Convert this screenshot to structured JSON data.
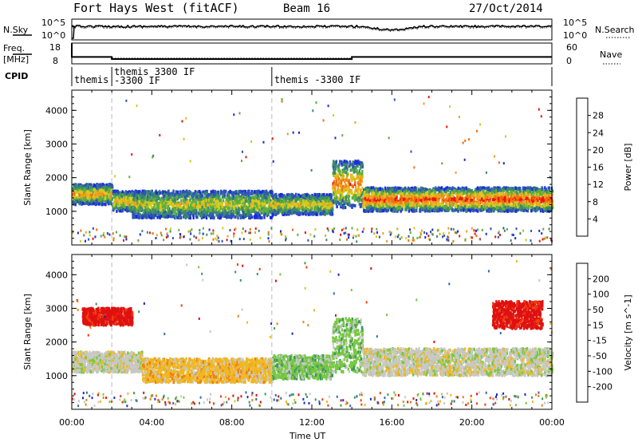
{
  "header": {
    "station": "Fort Hays West (fitACF)",
    "beam": "Beam 16",
    "date": "27/Oct/2014"
  },
  "strip_labels": {
    "nsky": "N.Sky",
    "nsearch": "N.Search",
    "freq_line1": "Freq.",
    "freq_line2": "[MHz]",
    "nave": "Nave",
    "cpid": "CPID",
    "ticks_left_top": [
      "10^5",
      "10^0"
    ],
    "ticks_right_top": [
      "10^5",
      "10^0"
    ],
    "ticks_left_freq": [
      "18",
      "8"
    ],
    "ticks_right_freq": [
      "60",
      "0"
    ]
  },
  "cpid_segments": [
    {
      "start_h": 0.0,
      "label": "themis"
    },
    {
      "start_h": 2.0,
      "label": "themis 3300 IF\n-3300 IF"
    },
    {
      "start_h": 10.0,
      "label": "themis -3300 IF"
    }
  ],
  "chart_data": [
    {
      "type": "heatmap",
      "name": "power",
      "ylabel": "Slant Range [km]",
      "xlabel": "Time UT",
      "xlim_hours": [
        0,
        24
      ],
      "ylim": [
        0,
        4600
      ],
      "yticks": [
        1000,
        2000,
        3000,
        4000
      ],
      "xtick_labels": [
        "00:00",
        "04:00",
        "08:00",
        "12:00",
        "16:00",
        "20:00",
        "00:00"
      ],
      "colorbar": {
        "label": "Power [dB]",
        "ticks": [
          "4",
          "8",
          "12",
          "16",
          "20",
          "24",
          "28"
        ],
        "colors": [
          "#1a2bdc",
          "#2f55b8",
          "#3b8a6a",
          "#5fae3e",
          "#d8c81e",
          "#f0a020",
          "#f07010",
          "#e81810"
        ]
      },
      "features": [
        {
          "t0": 0.0,
          "t1": 2.0,
          "r0": 1200,
          "r1": 1800,
          "level": 0.6
        },
        {
          "t0": 2.0,
          "t1": 3.5,
          "r0": 1000,
          "r1": 1600,
          "level": 0.55
        },
        {
          "t0": 3.0,
          "t1": 10.0,
          "r0": 800,
          "r1": 1600,
          "level": 0.45
        },
        {
          "t0": 10.0,
          "t1": 13.0,
          "r0": 900,
          "r1": 1500,
          "level": 0.5
        },
        {
          "t0": 13.0,
          "t1": 14.5,
          "r0": 1100,
          "r1": 2500,
          "level": 0.7
        },
        {
          "t0": 14.5,
          "t1": 24.0,
          "r0": 1000,
          "r1": 1700,
          "level": 0.8
        }
      ]
    },
    {
      "type": "heatmap",
      "name": "velocity",
      "ylabel": "Slant Range [km]",
      "xlabel": "Time UT",
      "xlim_hours": [
        0,
        24
      ],
      "ylim": [
        0,
        4600
      ],
      "yticks": [
        1000,
        2000,
        3000,
        4000
      ],
      "xtick_labels": [
        "00:00",
        "04:00",
        "08:00",
        "12:00",
        "16:00",
        "20:00",
        "00:00"
      ],
      "colorbar": {
        "label": "Velocity [m s^-1]",
        "ticks": [
          "200",
          "100",
          "50",
          "15",
          "-15",
          "-50",
          "-100",
          "-200"
        ],
        "colors": [
          "#1a2bc8",
          "#2f6ab0",
          "#3b9a5a",
          "#78c840",
          "#c8c8c8",
          "#f0b820",
          "#f08010",
          "#f04010",
          "#e01010"
        ]
      },
      "features": [
        {
          "t0": 0.0,
          "t1": 3.5,
          "r0": 1100,
          "r1": 1700,
          "vel": "grey"
        },
        {
          "t0": 0.5,
          "t1": 3.0,
          "r0": 2500,
          "r1": 3000,
          "vel": "red"
        },
        {
          "t0": 3.5,
          "t1": 10.0,
          "r0": 800,
          "r1": 1500,
          "vel": "orange"
        },
        {
          "t0": 10.0,
          "t1": 13.0,
          "r0": 900,
          "r1": 1600,
          "vel": "green"
        },
        {
          "t0": 13.0,
          "t1": 14.5,
          "r0": 1100,
          "r1": 2700,
          "vel": "green"
        },
        {
          "t0": 14.5,
          "t1": 24.0,
          "r0": 1000,
          "r1": 1800,
          "vel": "grey"
        },
        {
          "t0": 21.0,
          "t1": 23.5,
          "r0": 2400,
          "r1": 3200,
          "vel": "red"
        }
      ]
    }
  ]
}
